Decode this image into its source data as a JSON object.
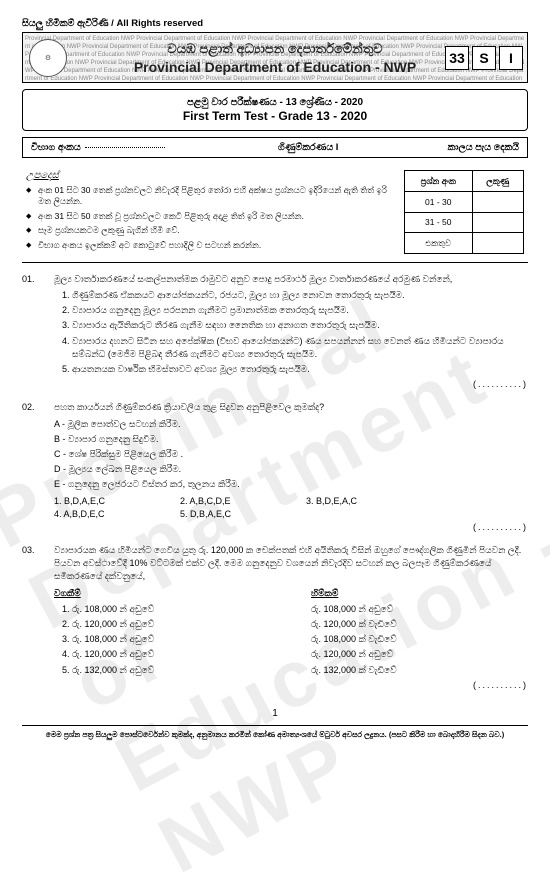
{
  "reserved": "සියලු හිමිකම් ඇවිරිණි / All Rights reserved",
  "header": {
    "bg_repeat": "Provincial Department of Education NWP ",
    "line_si": "වයඹ පළාත් අධ්‍යාපන දෙපාර්තමේන්තුව",
    "line_en": "Provincial Department of Education - NWP",
    "codes": [
      "33",
      "S",
      "I"
    ],
    "crest": "⚙"
  },
  "title": {
    "si": "පළමු වාර පරීක්ෂණය - 13 ශ්‍රේණිය - 2020",
    "en": "First Term Test  - Grade 13 - 2020"
  },
  "subject_row": {
    "left_label": "විභාග අංකය",
    "center": "ගිණුම්කරණය I",
    "right": "කාලය පැය දෙකයි"
  },
  "instructions": {
    "title": "උපදෙස්",
    "items": [
      "අංක 01 සිට 30 තෙක් ප්‍රශ්නවලට නිවැරදි පිළිතුර තෝරා එහි අක්ෂය ප්‍රශ්නයට ඉදිරියෙන් ඇති තිත් ඉරි මත ලියන්න.",
      "අංක 31 සිට 50 තෙක් වූ ප්‍රශ්නවලට කෙටි පිළිතුරු අදාළ තිත් ඉරි මත ලියන්න.",
      "සෑම ප්‍රශ්නයකටම ලකුණු බැගින් හිමි වේ.",
      "විභාග අංකය ඉලක්කම් අට කොටුවේ පහාදිලි ව සටහන් කරන්න."
    ]
  },
  "marks_table": {
    "head": [
      "ප්‍රශ්න අංක",
      "ලකුණු"
    ],
    "rows": [
      [
        "01 - 30",
        ""
      ],
      [
        "31 - 50",
        ""
      ],
      [
        "එකතුව",
        ""
      ]
    ]
  },
  "q1": {
    "num": "01.",
    "stem": "මූල්‍ය වාර්තාකරණයේ සංකල්පනාත්මක රාමුවට අනුව පොදු පරමාර්ථ මූල්‍ය වාර්තාකරණයේ අරමුණ වන්නේ,",
    "items": [
      "ගිණුම්කරණ ඒකකයට ආයෝජකයන්ට, රජයට, මූල්‍ය හා මූල්‍ය නොවන තොරතුරු සැපයීම.",
      "ව්‍යාපාරය ගනුදෙනු මූල්‍ය පරපනන ගැනීමට ප්‍රමානාත්මක තොරතුරු සැපයීම.",
      "ව්‍යාපාරය ඇයිතිකරුට තීරණ ගැනීම සඳහා නෛතික හා අනාගත තොරතුරු සැපයීම.",
      "ව්‍යාපාරය දහනට සිටින සහ අපේක්ෂික (විභව ආයෝජකයන්ට) ණය සපයන්නන් සහ වෙනත් ණය හිමියන්ට ව්‍යාපාරය සම්බන්ධ (මෙජීම පිළිබඳ තීරණ ගැනීමට අවශ්‍ය තොරතුරු සැපයීම.",
      "ආයතනයක වාර්ෂික භිමස්තාවට අවශ්‍ය මූල්‍ය තොරතුරු සැපයීම."
    ],
    "blank": "(..........)"
  },
  "q2": {
    "num": "02.",
    "stem": "පහත කාර්යයන් ගිණුම්කරණ ක්‍රියාවලිය තුළ සිදුවන අනුපිළිවෙල කුමක්ද?",
    "labels": [
      "A   -   මූලික පොත්වල සටහන් කිරීම.",
      "B   -   ව්‍යාපාර ගනුදෙනු සිදුවීම.",
      "C   -   ශේෂ පිරික්සුම පිළියෙල කිරීම .",
      "D   -   මූල්‍යය ලේඛන පිළියෙල කිරීම.",
      "E   -   ගනුදෙනු ලෙජරයට විස්තර කර, තුලනය කිරීම."
    ],
    "options": [
      "1.  B,D,A,E,C",
      "2.  A,B,C,D,E",
      "3.  B,D,E,A,C",
      "4.  A,B,D,E,C",
      "5.  D,B,A,E,C"
    ],
    "blank": "(..........)"
  },
  "q3": {
    "num": "03.",
    "stem": "ව්‍යාපාරයක ණය හිමියන්ට ගෙවිය යුතු රු. 120,000 ක චෙක්පතක් එහි අයිතිකරු විසින් ඔහුගේ පෞද්ගලික ගිණුමින් පියවන ලදී. පියවන අවස්ථාවේදී 10% වට්ටමක් එක්ව ලදී. මෙම ගනුදෙනුව වශයෙන් නිවැරදිව සටහන් කල බලපෑම ගිණුම්කරණයේ සමීකරණයේ දක්වනුයේ,",
    "col_left_title": "වගකීම්",
    "col_right_title": "හිම්කම්",
    "rows": [
      {
        "n": "1.",
        "l": "රු. 108,000 න් අඩුවේ",
        "r": "රු. 108,000 න් අඩුවේ"
      },
      {
        "n": "2.",
        "l": "රු. 120,000 න් අඩුවේ",
        "r": "රු. 120,000 ක් වැඩිවේ"
      },
      {
        "n": "3.",
        "l": "රු. 108,000 න් අඩුවේ",
        "r": "රු. 108,000 ක් වැඩිවේ"
      },
      {
        "n": "4.",
        "l": "රු. 120,000 න් අඩුවේ",
        "r": "රු. 120,000 න් අඩුවේ"
      },
      {
        "n": "5.",
        "l": "රු. 132,000 න් අඩුවේ",
        "r": "රු. 132,000 ක් වැඩිවේ"
      }
    ],
    "blank": "(..........)"
  },
  "page_num": "1",
  "footer": "මෙම ප්‍රශ්න පත්‍ර සියලුම පොස්ටර්වෙන්ව කුමක්ද, අනුමානය කරමින් කෝණ අමාත්‍යංශයේ ම්ටුර්ව අවසර ලදුනය. (පසට කිරීම හා බොදාහිරීම සිදන බව.)"
}
